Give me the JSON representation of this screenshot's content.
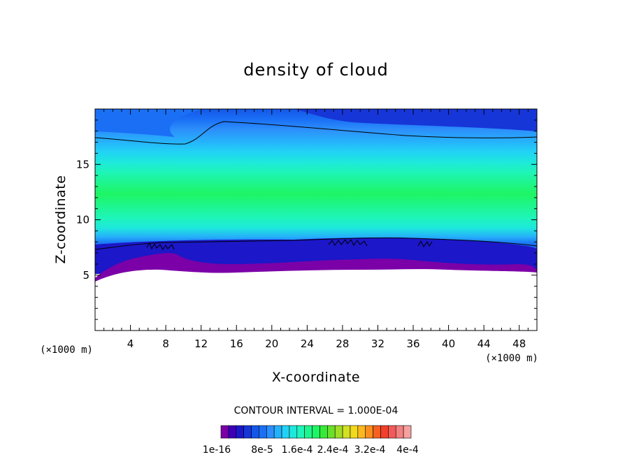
{
  "chart_data": {
    "type": "heatmap",
    "title": "density of cloud",
    "xlabel": "X-coordinate",
    "ylabel": "Z-coordinate",
    "x_unit": "(×1000 m)",
    "y_unit": "(×1000 m)",
    "xlim": [
      0,
      50
    ],
    "ylim": [
      0,
      20
    ],
    "x_ticks": [
      4,
      8,
      12,
      16,
      20,
      24,
      28,
      32,
      36,
      40,
      44,
      48
    ],
    "y_ticks": [
      5,
      10,
      15
    ],
    "grid": false,
    "contour_interval_text": "CONTOUR INTERVAL = 1.000E-04",
    "colorbar": {
      "colors": [
        "#7b00a8",
        "#3b00b8",
        "#1c17c8",
        "#1636d8",
        "#1457e8",
        "#1a6ff5",
        "#2d8ffb",
        "#26b1fb",
        "#22d2f5",
        "#1ee8dc",
        "#1ef5b8",
        "#1ef58e",
        "#1ef564",
        "#36ea3a",
        "#6ae02c",
        "#a2dd28",
        "#d2e024",
        "#f2d91e",
        "#fab91e",
        "#fa8f1e",
        "#f66020",
        "#f2402a",
        "#f25a5a",
        "#f48080",
        "#f6a0a0"
      ],
      "tick_labels": [
        "1e-16",
        "8e-5",
        "1.6e-4",
        "2.4e-4",
        "3.2e-4",
        "4e-4"
      ]
    }
  }
}
